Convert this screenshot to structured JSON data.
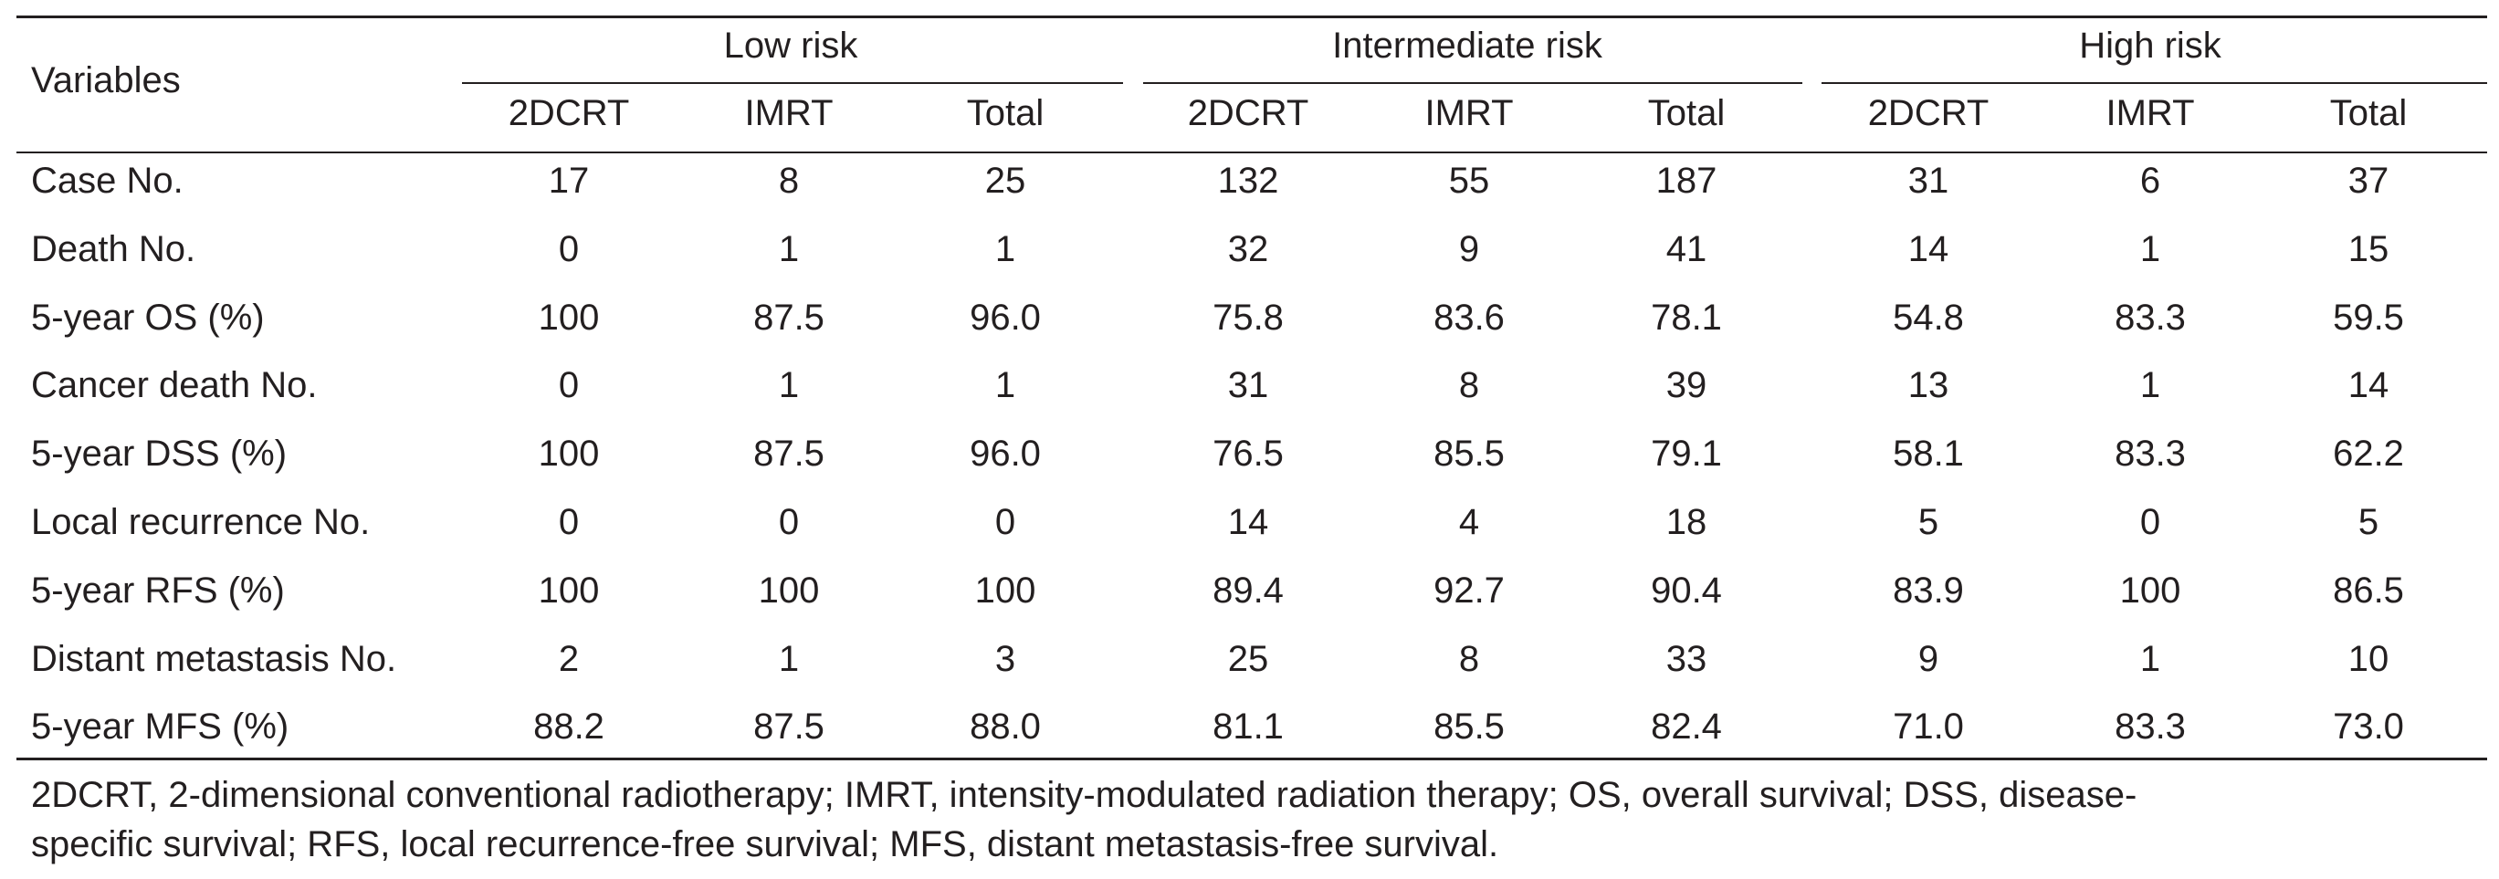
{
  "table": {
    "header": {
      "variables": "Variables",
      "groups": [
        "Low risk",
        "Intermediate risk",
        "High risk"
      ],
      "subcolumns": [
        "2DCRT",
        "IMRT",
        "Total",
        "2DCRT",
        "IMRT",
        "Total",
        "2DCRT",
        "IMRT",
        "Total"
      ]
    },
    "rows": [
      {
        "label": "Case No.",
        "values": [
          "17",
          "8",
          "25",
          "132",
          "55",
          "187",
          "31",
          "6",
          "37"
        ]
      },
      {
        "label": "Death No.",
        "values": [
          "0",
          "1",
          "1",
          "32",
          "9",
          "41",
          "14",
          "1",
          "15"
        ]
      },
      {
        "label": "5-year OS (%)",
        "values": [
          "100",
          "87.5",
          "96.0",
          "75.8",
          "83.6",
          "78.1",
          "54.8",
          "83.3",
          "59.5"
        ]
      },
      {
        "label": "Cancer death No.",
        "values": [
          "0",
          "1",
          "1",
          "31",
          "8",
          "39",
          "13",
          "1",
          "14"
        ]
      },
      {
        "label": "5-year DSS (%)",
        "values": [
          "100",
          "87.5",
          "96.0",
          "76.5",
          "85.5",
          "79.1",
          "58.1",
          "83.3",
          "62.2"
        ]
      },
      {
        "label": "Local recurrence No.",
        "values": [
          "0",
          "0",
          "0",
          "14",
          "4",
          "18",
          "5",
          "0",
          "5"
        ]
      },
      {
        "label": "5-year RFS (%)",
        "values": [
          "100",
          "100",
          "100",
          "89.4",
          "92.7",
          "90.4",
          "83.9",
          "100",
          "86.5"
        ]
      },
      {
        "label": "Distant metastasis No.",
        "values": [
          "2",
          "1",
          "3",
          "25",
          "8",
          "33",
          "9",
          "1",
          "10"
        ]
      },
      {
        "label": "5-year MFS (%)",
        "values": [
          "88.2",
          "87.5",
          "88.0",
          "81.1",
          "85.5",
          "82.4",
          "71.0",
          "83.3",
          "73.0"
        ]
      }
    ],
    "footnote": [
      "2DCRT, 2-dimensional conventional radiotherapy; IMRT, intensity-modulated radiation therapy; OS, overall survival; DSS, disease-",
      "specific survival; RFS, local recurrence-free survival; MFS, distant metastasis-free survival."
    ]
  }
}
